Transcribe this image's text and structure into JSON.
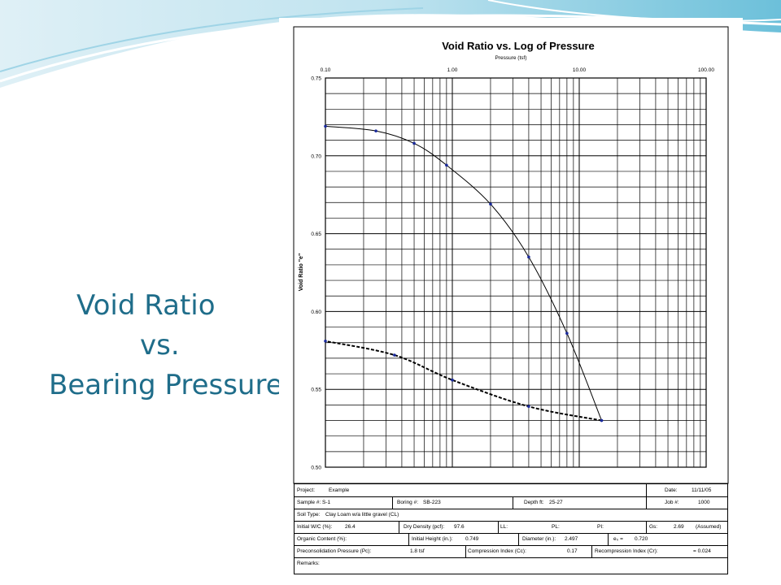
{
  "slide": {
    "title_lines": [
      "Void Ratio",
      "vs.",
      "Bearing Pressure"
    ]
  },
  "chart": {
    "title": "Void Ratio vs. Log of Pressure",
    "subtitle": "Pressure (tsf)",
    "ylabel": "Void Ratio \"e\"",
    "x_ticks": [
      "0.10",
      "1.00",
      "10.00",
      "100.00"
    ],
    "y_ticks": [
      "0.75",
      "0.70",
      "0.65",
      "0.60",
      "0.55",
      "0.50"
    ]
  },
  "chart_data": {
    "type": "line",
    "title": "Void Ratio vs. Log of Pressure",
    "xlabel": "Pressure (tsf)",
    "ylabel": "Void Ratio \"e\"",
    "x_scale": "log",
    "xlim": [
      0.1,
      100
    ],
    "ylim": [
      0.5,
      0.75
    ],
    "grid": true,
    "series": [
      {
        "style": "solid",
        "x": [
          0.1,
          0.25,
          0.5,
          0.9,
          2.0,
          4.0,
          8.0,
          15.0
        ],
        "y": [
          0.719,
          0.716,
          0.708,
          0.694,
          0.669,
          0.635,
          0.586,
          0.53
        ]
      },
      {
        "style": "dashed",
        "x": [
          15.0,
          4.0,
          1.0,
          0.35,
          0.1
        ],
        "y": [
          0.53,
          0.539,
          0.556,
          0.572,
          0.581
        ]
      }
    ]
  },
  "info": {
    "project_label": "Project:",
    "project": "Example",
    "date_label": "Date:",
    "date": "11/11/05",
    "sample_label": "Sample #:",
    "sample": "S-1",
    "boring_label": "Boring #:",
    "boring": "SB-223",
    "depth_label": "Depth ft:",
    "depth": "25-27",
    "job_label": "Job #:",
    "job": "1000",
    "soil_label": "Soil Type:",
    "soil": "Clay Loam w/a little gravel (CL)",
    "wc_label": "Initial W/C (%):",
    "wc": "26.4",
    "dd_label": "Dry Density (pcf):",
    "dd": "97.6",
    "ll_label": "LL:",
    "pl_label": "PL:",
    "pi_label": "PI:",
    "gs_label": "Gs:",
    "gs": "2.69",
    "gs_note": "(Assumed)",
    "oc_label": "Organic Content (%):",
    "ih_label": "Initial Height (in.):",
    "ih": "0.749",
    "dia_label": "Diameter (in.):",
    "dia": "2.497",
    "e0_label": "e₀ =",
    "e0": "0.720",
    "pc_label": "Preconsolidation Pressure (Pc):",
    "pc": "1.8 tsf",
    "cc_label": "Compression Index (Cc):",
    "cc": "0.17",
    "cr_label": "Recompression Index (Cr):",
    "cr": "= 0.024",
    "remarks_label": "Remarks:"
  }
}
